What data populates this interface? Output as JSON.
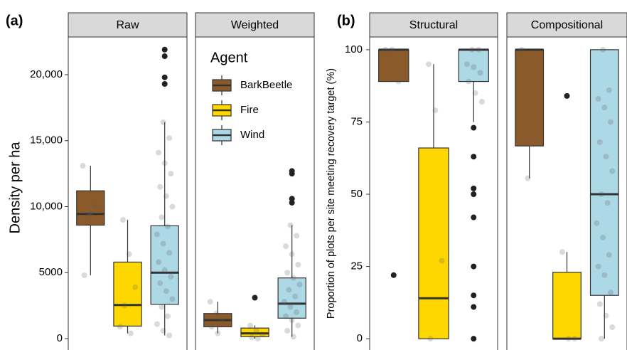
{
  "chart_data": [
    {
      "type": "box",
      "panel_label": "(a)",
      "y_label": "Density per ha",
      "ylim": [
        -862,
        22857
      ],
      "yticks": [
        0,
        5000,
        {
          "value": 10000,
          "label": "10,000"
        },
        {
          "value": 15000,
          "label": "15,000"
        },
        {
          "value": 20000,
          "label": "20,000"
        }
      ],
      "legend_title": "Agent",
      "series": [
        {
          "name": "BarkBeetle",
          "color": "#8b5a2b"
        },
        {
          "name": "Fire",
          "color": "#ffd700"
        },
        {
          "name": "Wind",
          "color": "#add8e6"
        }
      ],
      "facets": [
        {
          "title": "Raw",
          "boxes": [
            {
              "color": "#8b5a2b",
              "whislo": 4800,
              "q1": 8600,
              "med": 9450,
              "q3": 11200,
              "whishi": 13100,
              "outliers": [],
              "points": [
                13100,
                9400,
                10000,
                4800,
                9500
              ]
            },
            {
              "color": "#ffd700",
              "whislo": 400,
              "q1": 950,
              "med": 2550,
              "q3": 5800,
              "whishi": 9000,
              "outliers": [],
              "points": [
                9000,
                6400,
                3900,
                2500,
                400,
                900
              ]
            },
            {
              "color": "#add8e6",
              "whislo": 250,
              "q1": 2600,
              "med": 5000,
              "q3": 8550,
              "whishi": 16400,
              "outliers": [
                19300,
                19800,
                21400,
                21900
              ],
              "points": [
                16400,
                15200,
                14100,
                13300,
                12500,
                11500,
                10800,
                10000,
                9200,
                8500,
                7900,
                7200,
                6500,
                5800,
                5200,
                4700,
                4200,
                3600,
                3000,
                2400,
                1700,
                1100,
                600,
                250
              ]
            }
          ]
        },
        {
          "title": "Weighted",
          "boxes": [
            {
              "color": "#8b5a2b",
              "whislo": 400,
              "q1": 900,
              "med": 1400,
              "q3": 1900,
              "whishi": 2800,
              "outliers": [],
              "points": [
                2800,
                1900,
                1400,
                900,
                400
              ]
            },
            {
              "color": "#ffd700",
              "whislo": 0,
              "q1": 150,
              "med": 400,
              "q3": 800,
              "whishi": 1000,
              "outliers": [
                3100
              ],
              "points": [
                1000,
                600,
                300,
                100,
                0
              ]
            },
            {
              "color": "#add8e6",
              "whislo": 150,
              "q1": 1550,
              "med": 2650,
              "q3": 4600,
              "whishi": 8600,
              "outliers": [
                10300,
                10600,
                12500,
                12700
              ],
              "points": [
                8600,
                7800,
                7000,
                6400,
                5600,
                5000,
                4600,
                4100,
                3700,
                3200,
                2800,
                2400,
                2000,
                1700,
                1400,
                1000,
                600,
                150
              ]
            }
          ]
        }
      ]
    },
    {
      "type": "box",
      "panel_label": "(b)",
      "y_label": "Proportion of plots per site meeting recovery target (%)",
      "ylim": [
        -3.9,
        104.4
      ],
      "yticks": [
        0,
        25,
        50,
        75,
        100
      ],
      "facets": [
        {
          "title": "Structural",
          "boxes": [
            {
              "color": "#8b5a2b",
              "whislo": 89,
              "q1": 89,
              "med": 100,
              "q3": 100,
              "whishi": 100,
              "outliers": [
                22
              ],
              "points": [
                100,
                100,
                89
              ]
            },
            {
              "color": "#ffd700",
              "whislo": 0,
              "q1": 0,
              "med": 14,
              "q3": 66,
              "whishi": 95,
              "outliers": [],
              "points": [
                95,
                79,
                27,
                0
              ]
            },
            {
              "color": "#add8e6",
              "whislo": 75,
              "q1": 89,
              "med": 100,
              "q3": 100,
              "whishi": 100,
              "outliers": [
                73,
                63,
                52,
                50,
                42,
                25,
                15,
                11,
                0
              ],
              "points": [
                100,
                100,
                95,
                94,
                92,
                89,
                85,
                82
              ]
            }
          ]
        },
        {
          "title": "Compositional",
          "boxes": [
            {
              "color": "#8b5a2b",
              "whislo": 55.5,
              "q1": 66.7,
              "med": 100,
              "q3": 100,
              "whishi": 100,
              "outliers": [],
              "points": [
                100,
                55.5
              ]
            },
            {
              "color": "#ffd700",
              "whislo": 0,
              "q1": 0,
              "med": 0,
              "q3": 23,
              "whishi": 30,
              "outliers": [
                84
              ],
              "points": [
                30,
                0,
                0
              ]
            },
            {
              "color": "#add8e6",
              "whislo": 0,
              "q1": 15,
              "med": 50,
              "q3": 100,
              "whishi": 100,
              "outliers": [],
              "points": [
                100,
                86,
                83,
                80,
                75,
                68,
                63,
                58,
                50,
                47,
                40,
                35,
                29,
                25,
                22,
                16,
                12,
                8,
                4,
                0
              ]
            }
          ]
        }
      ]
    }
  ]
}
